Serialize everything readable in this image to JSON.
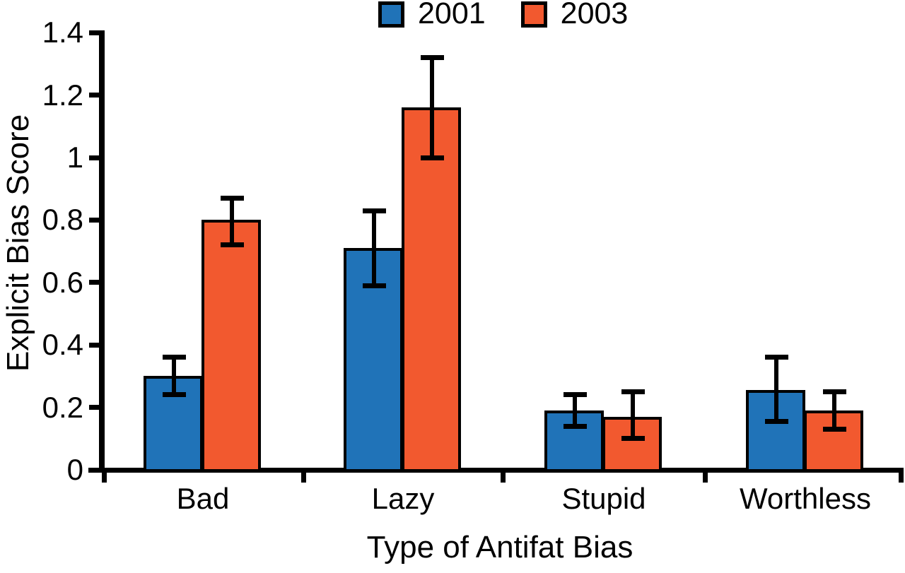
{
  "figure": {
    "background": "#FFFFFF",
    "y_axis_title": "Explicit Bias Score",
    "x_axis_title": "Type of Antifat Bias"
  },
  "chart_data": {
    "type": "bar",
    "title": "",
    "categories": [
      "Bad",
      "Lazy",
      "Stupid",
      "Worthless"
    ],
    "series": [
      {
        "name": "2001",
        "color": "#2073B8",
        "values": [
          0.3,
          0.71,
          0.19,
          0.255
        ],
        "err_low": [
          0.24,
          0.59,
          0.14,
          0.155
        ],
        "err_high": [
          0.36,
          0.83,
          0.24,
          0.36
        ]
      },
      {
        "name": "2003",
        "color": "#F2592F",
        "values": [
          0.8,
          1.16,
          0.17,
          0.19
        ],
        "err_low": [
          0.72,
          1.0,
          0.1,
          0.13
        ],
        "err_high": [
          0.87,
          1.32,
          0.25,
          0.25
        ]
      }
    ],
    "xlabel": "Type of Antifat Bias",
    "ylabel": "Explicit Bias Score",
    "ylim": [
      0,
      1.4
    ],
    "ytick_step": 0.2,
    "ytick_labels": [
      "0",
      "0.2",
      "0.4",
      "0.6",
      "0.8",
      "1",
      "1.2",
      "1.4"
    ],
    "legend_position": "top",
    "legend_entries": [
      "2001",
      "2003"
    ],
    "grid": false,
    "error_bars": true,
    "axis_color": "#000000",
    "text_color": "#000000"
  }
}
